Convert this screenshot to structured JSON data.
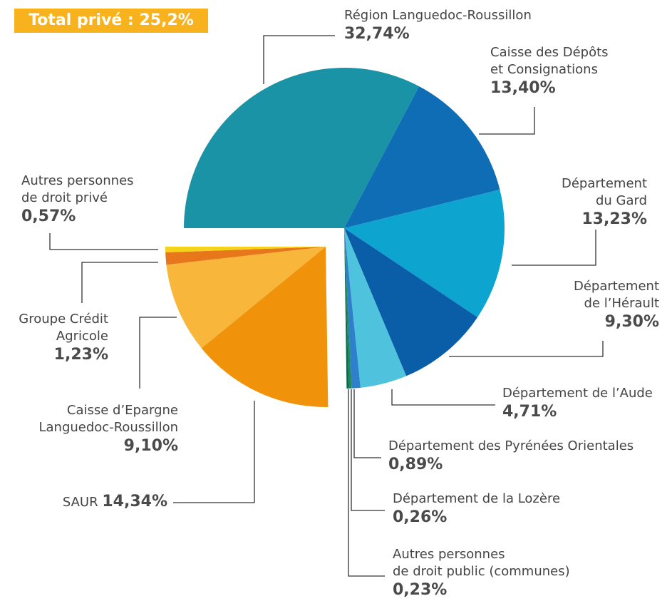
{
  "chart_data": {
    "type": "pie",
    "annotation": "Total privé : 25,2%",
    "categories": [
      "Région Languedoc-Roussillon",
      "Caisse des Dépôts\net Consignations",
      "Département\ndu Gard",
      "Département\nde l’Hérault",
      "Département de l’Aude",
      "Département des Pyrénées Orientales",
      "Département de la Lozère",
      "Autres personnes\nde droit public (communes)",
      "SAUR",
      "Caisse d’Epargne\nLanguedoc-Roussillon",
      "Groupe Crédit\nAgricole",
      "Autres personnes\nde droit privé"
    ],
    "values": [
      32.74,
      13.4,
      13.23,
      9.3,
      4.71,
      0.89,
      0.26,
      0.23,
      14.34,
      9.1,
      1.23,
      0.57
    ],
    "value_labels": [
      "32,74%",
      "13,40%",
      "13,23%",
      "9,30%",
      "4,71%",
      "0,89%",
      "0,26%",
      "0,23%",
      "14,34%",
      "9,10%",
      "1,23%",
      "0,57%"
    ],
    "colors": [
      "#1a93a6",
      "#0f6db5",
      "#0ea4d0",
      "#0a5ea8",
      "#4fc2de",
      "#2d80c9",
      "#1f8a5a",
      "#0a6a50",
      "#f0920a",
      "#f8b63a",
      "#e8761a",
      "#f7d21a"
    ]
  }
}
